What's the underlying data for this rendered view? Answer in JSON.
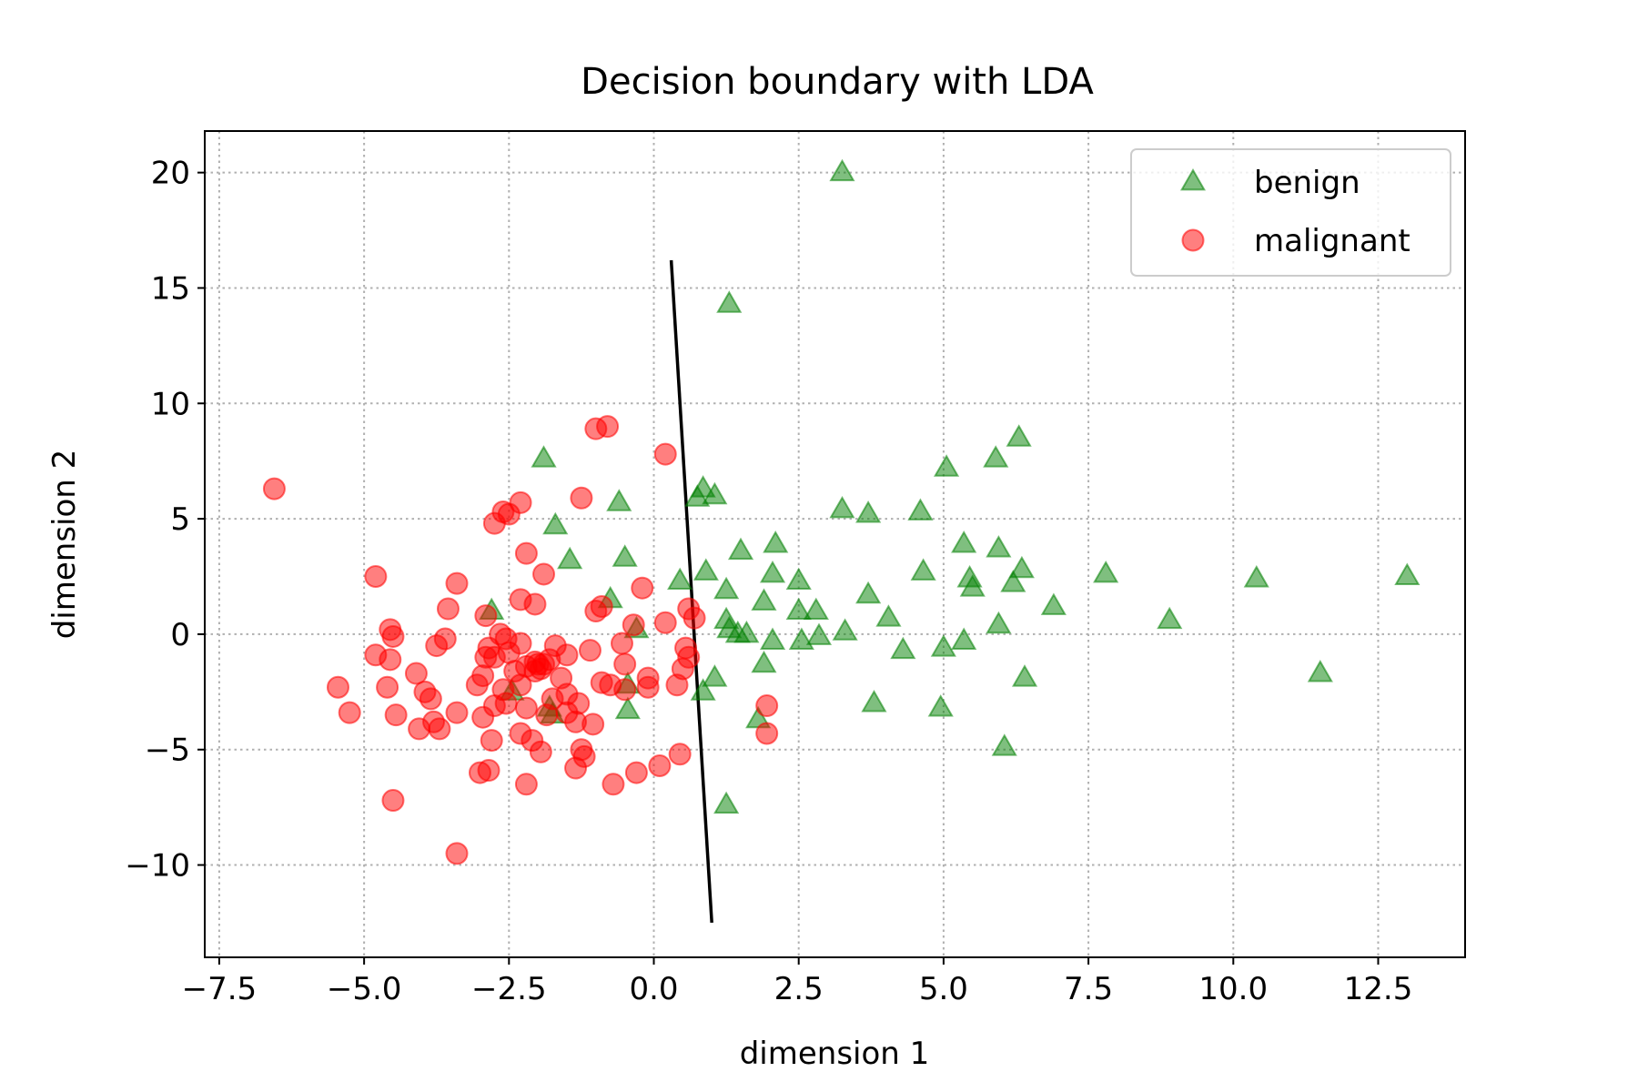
{
  "chart_data": {
    "type": "scatter",
    "title": "Decision boundary with LDA",
    "xlabel": "dimension 1",
    "ylabel": "dimension 2",
    "xlim": [
      -7.75,
      14.0
    ],
    "ylim": [
      -14.0,
      21.8
    ],
    "xticks": [
      -7.5,
      -5.0,
      -2.5,
      0.0,
      2.5,
      5.0,
      7.5,
      10.0,
      12.5
    ],
    "xtick_labels": [
      "−7.5",
      "−5.0",
      "−2.5",
      "0.0",
      "2.5",
      "5.0",
      "7.5",
      "10.0",
      "12.5"
    ],
    "yticks": [
      -10,
      -5,
      0,
      5,
      10,
      15,
      20
    ],
    "ytick_labels": [
      "−10",
      "−5",
      "0",
      "5",
      "10",
      "15",
      "20"
    ],
    "grid": true,
    "legend_position": "top-right",
    "series": [
      {
        "name": "benign",
        "marker": "triangle",
        "color": "#008000",
        "points": [
          [
            3.25,
            20.0
          ],
          [
            1.3,
            14.3
          ],
          [
            6.3,
            8.5
          ],
          [
            5.9,
            7.6
          ],
          [
            5.05,
            7.2
          ],
          [
            -1.9,
            7.6
          ],
          [
            0.85,
            6.3
          ],
          [
            1.05,
            6.0
          ],
          [
            0.75,
            5.9
          ],
          [
            3.25,
            5.4
          ],
          [
            3.7,
            5.2
          ],
          [
            4.6,
            5.3
          ],
          [
            -0.6,
            5.7
          ],
          [
            -1.7,
            4.7
          ],
          [
            -1.45,
            3.2
          ],
          [
            -0.5,
            3.3
          ],
          [
            1.5,
            3.6
          ],
          [
            2.1,
            3.9
          ],
          [
            5.35,
            3.9
          ],
          [
            5.95,
            3.7
          ],
          [
            0.9,
            2.7
          ],
          [
            2.05,
            2.6
          ],
          [
            4.65,
            2.7
          ],
          [
            6.35,
            2.8
          ],
          [
            7.8,
            2.6
          ],
          [
            13.0,
            2.5
          ],
          [
            10.4,
            2.4
          ],
          [
            0.45,
            2.3
          ],
          [
            1.25,
            1.9
          ],
          [
            2.5,
            2.3
          ],
          [
            5.45,
            2.4
          ],
          [
            5.5,
            2.0
          ],
          [
            6.2,
            2.2
          ],
          [
            3.7,
            1.7
          ],
          [
            -0.75,
            1.5
          ],
          [
            1.9,
            1.4
          ],
          [
            6.9,
            1.2
          ],
          [
            2.5,
            1.0
          ],
          [
            2.8,
            1.0
          ],
          [
            4.05,
            0.7
          ],
          [
            8.9,
            0.6
          ],
          [
            1.25,
            0.6
          ],
          [
            -2.8,
            1.0
          ],
          [
            -0.3,
            0.2
          ],
          [
            1.3,
            0.2
          ],
          [
            1.45,
            0.0
          ],
          [
            1.6,
            0.0
          ],
          [
            2.05,
            -0.3
          ],
          [
            2.55,
            -0.3
          ],
          [
            2.85,
            -0.1
          ],
          [
            3.3,
            0.1
          ],
          [
            5.35,
            -0.3
          ],
          [
            5.0,
            -0.6
          ],
          [
            5.95,
            0.4
          ],
          [
            4.3,
            -0.7
          ],
          [
            1.9,
            -1.3
          ],
          [
            11.5,
            -1.7
          ],
          [
            6.4,
            -1.9
          ],
          [
            1.05,
            -1.9
          ],
          [
            0.85,
            -2.5
          ],
          [
            -0.45,
            -2.2
          ],
          [
            -2.45,
            -2.5
          ],
          [
            -1.8,
            -3.2
          ],
          [
            3.8,
            -3.0
          ],
          [
            4.95,
            -3.2
          ],
          [
            -0.45,
            -3.3
          ],
          [
            1.8,
            -3.7
          ],
          [
            -1.75,
            -3.5
          ],
          [
            6.05,
            -4.9
          ],
          [
            1.25,
            -7.4
          ]
        ]
      },
      {
        "name": "malignant",
        "marker": "circle",
        "color": "#ff0000",
        "points": [
          [
            -6.55,
            6.3
          ],
          [
            -0.8,
            9.0
          ],
          [
            -1.0,
            8.9
          ],
          [
            0.2,
            7.8
          ],
          [
            -1.25,
            5.9
          ],
          [
            -2.3,
            5.7
          ],
          [
            -2.6,
            5.3
          ],
          [
            -2.75,
            4.8
          ],
          [
            -2.5,
            5.2
          ],
          [
            -2.2,
            3.5
          ],
          [
            -1.9,
            2.6
          ],
          [
            -4.8,
            2.5
          ],
          [
            -3.4,
            2.2
          ],
          [
            -0.2,
            2.0
          ],
          [
            -2.3,
            1.5
          ],
          [
            -2.05,
            1.3
          ],
          [
            -3.55,
            1.1
          ],
          [
            -1.0,
            1.0
          ],
          [
            -0.9,
            1.2
          ],
          [
            0.6,
            1.1
          ],
          [
            0.7,
            0.7
          ],
          [
            -2.9,
            0.8
          ],
          [
            0.2,
            0.5
          ],
          [
            -0.35,
            0.4
          ],
          [
            -4.55,
            0.2
          ],
          [
            -4.5,
            -0.1
          ],
          [
            -3.6,
            -0.2
          ],
          [
            -3.75,
            -0.5
          ],
          [
            -2.55,
            -0.2
          ],
          [
            -2.65,
            0.0
          ],
          [
            -2.5,
            -0.8
          ],
          [
            -2.85,
            -0.6
          ],
          [
            -2.75,
            -1.0
          ],
          [
            -4.8,
            -0.9
          ],
          [
            -4.55,
            -1.1
          ],
          [
            -4.1,
            -1.7
          ],
          [
            -2.3,
            -0.4
          ],
          [
            -1.7,
            -0.5
          ],
          [
            -1.5,
            -0.9
          ],
          [
            -1.1,
            -0.7
          ],
          [
            -0.55,
            -0.4
          ],
          [
            -0.5,
            -1.3
          ],
          [
            0.55,
            -0.6
          ],
          [
            0.6,
            -1.0
          ],
          [
            0.5,
            -1.5
          ],
          [
            -2.0,
            -1.3
          ],
          [
            -2.05,
            -1.2
          ],
          [
            -1.9,
            -1.3
          ],
          [
            -1.8,
            -1.1
          ],
          [
            -1.95,
            -1.5
          ],
          [
            -2.2,
            -1.4
          ],
          [
            -2.05,
            -1.6
          ],
          [
            -2.9,
            -1.0
          ],
          [
            -2.95,
            -1.8
          ],
          [
            -2.4,
            -1.6
          ],
          [
            -1.6,
            -1.9
          ],
          [
            -0.9,
            -2.1
          ],
          [
            -0.75,
            -2.2
          ],
          [
            -0.1,
            -1.9
          ],
          [
            -0.1,
            -2.3
          ],
          [
            0.4,
            -2.2
          ],
          [
            -3.05,
            -2.2
          ],
          [
            -2.6,
            -2.4
          ],
          [
            -2.3,
            -2.2
          ],
          [
            -1.75,
            -2.8
          ],
          [
            -1.5,
            -2.6
          ],
          [
            -1.3,
            -3.0
          ],
          [
            -0.5,
            -2.4
          ],
          [
            -5.45,
            -2.3
          ],
          [
            -4.6,
            -2.3
          ],
          [
            -3.95,
            -2.5
          ],
          [
            -3.85,
            -2.8
          ],
          [
            -5.25,
            -3.4
          ],
          [
            -4.45,
            -3.5
          ],
          [
            -3.4,
            -3.4
          ],
          [
            -2.95,
            -3.6
          ],
          [
            -2.75,
            -3.1
          ],
          [
            -2.55,
            -3.0
          ],
          [
            -2.2,
            -3.2
          ],
          [
            -1.85,
            -3.5
          ],
          [
            -1.5,
            -3.4
          ],
          [
            -1.35,
            -3.8
          ],
          [
            -1.05,
            -3.9
          ],
          [
            -3.8,
            -3.8
          ],
          [
            -3.7,
            -4.1
          ],
          [
            -4.05,
            -4.1
          ],
          [
            -2.8,
            -4.6
          ],
          [
            -2.3,
            -4.3
          ],
          [
            -2.1,
            -4.6
          ],
          [
            -1.95,
            -5.1
          ],
          [
            -1.25,
            -5.0
          ],
          [
            -1.2,
            -5.3
          ],
          [
            -1.35,
            -5.8
          ],
          [
            -2.2,
            -6.5
          ],
          [
            -3.0,
            -6.0
          ],
          [
            -2.85,
            -5.9
          ],
          [
            -0.7,
            -6.5
          ],
          [
            -0.3,
            -6.0
          ],
          [
            0.1,
            -5.7
          ],
          [
            0.45,
            -5.2
          ],
          [
            1.95,
            -3.1
          ],
          [
            1.95,
            -4.3
          ],
          [
            -4.5,
            -7.2
          ],
          [
            -3.4,
            -9.5
          ]
        ]
      }
    ],
    "boundary": {
      "color": "#000000",
      "points": [
        [
          0.3,
          16.2
        ],
        [
          1.0,
          -12.5
        ]
      ]
    }
  }
}
